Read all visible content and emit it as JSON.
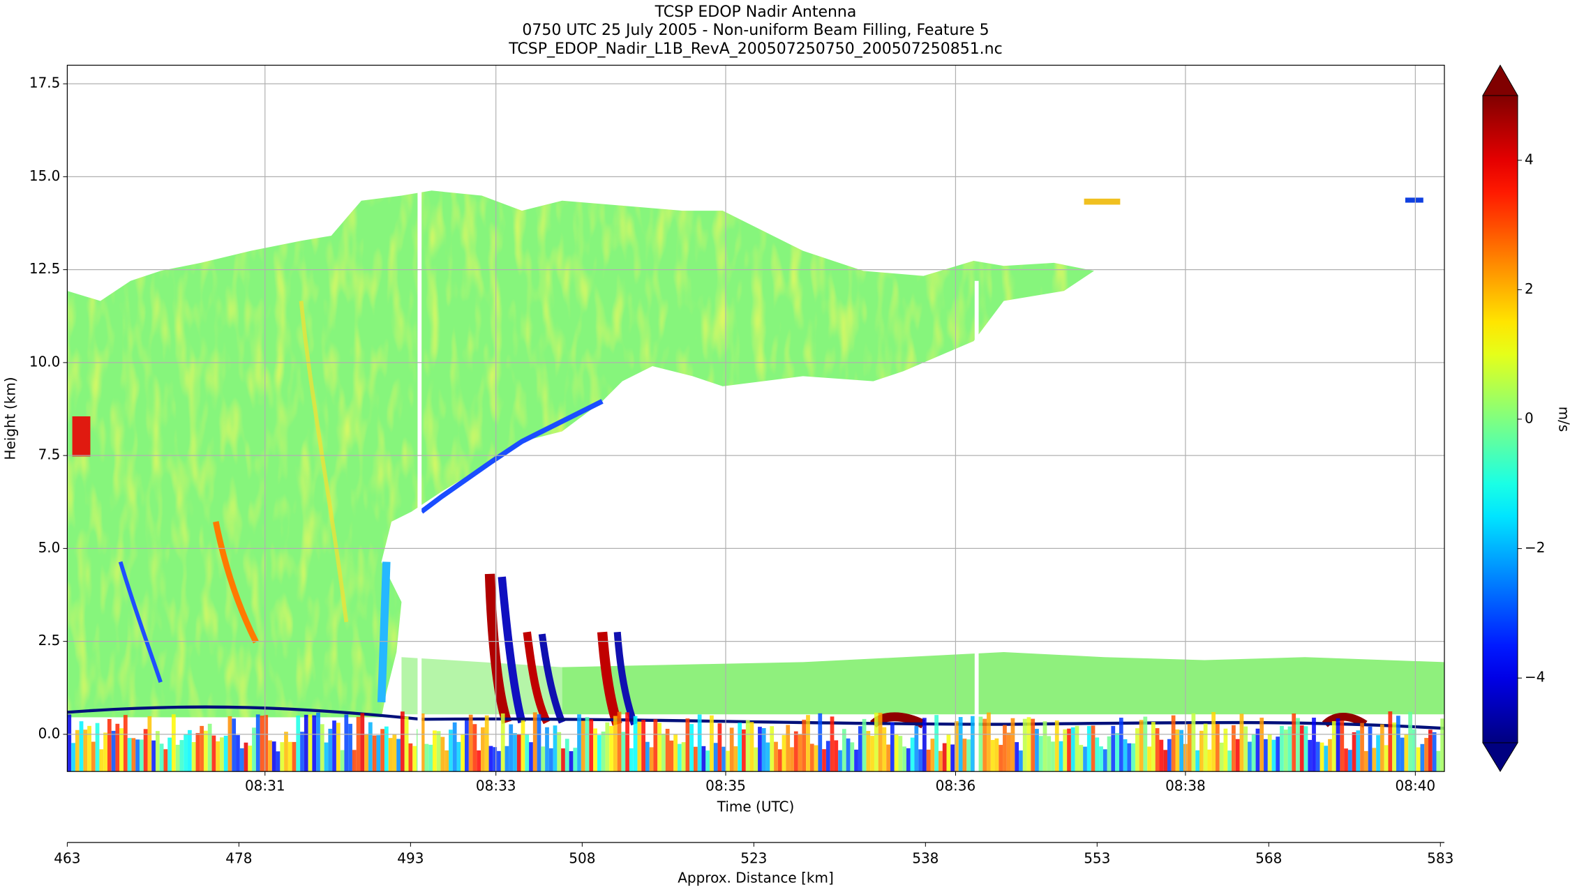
{
  "chart_data": {
    "type": "heatmap",
    "title": [
      "TCSP EDOP Nadir Antenna",
      "0750 UTC 25 July 2005 - Non-uniform Beam Filling, Feature 5",
      "TCSP_EDOP_Nadir_L1B_RevA_200507250750_200507250851.nc"
    ],
    "xlabel": "Time (UTC)",
    "ylabel": "Height (km)",
    "x2label": "Approx. Distance [km]",
    "colorbar_label": "m/s",
    "colormap": "jet",
    "grid": true,
    "xlim": [
      463,
      583.35
    ],
    "ylim": [
      -1,
      18
    ],
    "clim": [
      -5,
      5
    ],
    "xticks": [
      {
        "value": 480.28,
        "label": "08:31"
      },
      {
        "value": 500.46,
        "label": "08:33"
      },
      {
        "value": 520.54,
        "label": "08:35"
      },
      {
        "value": 540.63,
        "label": "08:36"
      },
      {
        "value": 560.72,
        "label": "08:38"
      },
      {
        "value": 580.81,
        "label": "08:40"
      }
    ],
    "x2ticks": [
      463,
      478,
      493,
      508,
      523,
      538,
      553,
      568,
      583
    ],
    "yticks": [
      {
        "value": 0,
        "label": "0.0"
      },
      {
        "value": 2.5,
        "label": "2.5"
      },
      {
        "value": 5,
        "label": "5.0"
      },
      {
        "value": 7.5,
        "label": "7.5"
      },
      {
        "value": 10,
        "label": "10.0"
      },
      {
        "value": 12.5,
        "label": "12.5"
      },
      {
        "value": 15,
        "label": "15.0"
      },
      {
        "value": 17.5,
        "label": "17.5"
      }
    ],
    "cticks": [
      {
        "value": -4,
        "label": "−4"
      },
      {
        "value": -2,
        "label": "−2"
      },
      {
        "value": 0,
        "label": "0"
      },
      {
        "value": 2,
        "label": "2"
      },
      {
        "value": 4,
        "label": "4"
      }
    ]
  }
}
